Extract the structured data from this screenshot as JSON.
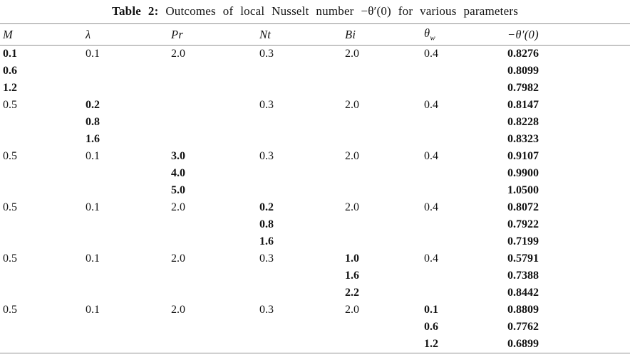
{
  "title": {
    "label": "Table 2:",
    "text": "Outcomes of local Nusselt number −θ′(0) for various parameters"
  },
  "table": {
    "headers": [
      {
        "name": "m",
        "text": "M"
      },
      {
        "name": "lambda",
        "text": "λ"
      },
      {
        "name": "pr",
        "text": "Pr"
      },
      {
        "name": "nt",
        "text": "Nt"
      },
      {
        "name": "bi",
        "text": "Bi"
      },
      {
        "name": "theta-w",
        "text": "θ",
        "sub": "w"
      },
      {
        "name": "nusselt",
        "text": "−θ′(0)"
      }
    ],
    "rows": [
      {
        "cells": [
          "0.1",
          "0.1",
          "2.0",
          "0.3",
          "2.0",
          "0.4",
          "0.8276"
        ],
        "bold": [
          true,
          false,
          false,
          false,
          false,
          false,
          true
        ]
      },
      {
        "cells": [
          "0.6",
          "",
          "",
          "",
          "",
          "",
          "0.8099"
        ],
        "bold": [
          true,
          false,
          false,
          false,
          false,
          false,
          true
        ]
      },
      {
        "cells": [
          "1.2",
          "",
          "",
          "",
          "",
          "",
          "0.7982"
        ],
        "bold": [
          true,
          false,
          false,
          false,
          false,
          false,
          true
        ]
      },
      {
        "cells": [
          "0.5",
          "0.2",
          "",
          "0.3",
          "2.0",
          "0.4",
          "0.8147"
        ],
        "bold": [
          false,
          true,
          false,
          false,
          false,
          false,
          true
        ]
      },
      {
        "cells": [
          "",
          "0.8",
          "",
          "",
          "",
          "",
          "0.8228"
        ],
        "bold": [
          false,
          true,
          false,
          false,
          false,
          false,
          true
        ]
      },
      {
        "cells": [
          "",
          "1.6",
          "",
          "",
          "",
          "",
          "0.8323"
        ],
        "bold": [
          false,
          true,
          false,
          false,
          false,
          false,
          true
        ]
      },
      {
        "cells": [
          "0.5",
          "0.1",
          "3.0",
          "0.3",
          "2.0",
          "0.4",
          "0.9107"
        ],
        "bold": [
          false,
          false,
          true,
          false,
          false,
          false,
          true
        ]
      },
      {
        "cells": [
          "",
          "",
          "4.0",
          "",
          "",
          "",
          "0.9900"
        ],
        "bold": [
          false,
          false,
          true,
          false,
          false,
          false,
          true
        ]
      },
      {
        "cells": [
          "",
          "",
          "5.0",
          "",
          "",
          "",
          "1.0500"
        ],
        "bold": [
          false,
          false,
          true,
          false,
          false,
          false,
          true
        ]
      },
      {
        "cells": [
          "0.5",
          "0.1",
          "2.0",
          "0.2",
          "2.0",
          "0.4",
          "0.8072"
        ],
        "bold": [
          false,
          false,
          false,
          true,
          false,
          false,
          true
        ]
      },
      {
        "cells": [
          "",
          "",
          "",
          "0.8",
          "",
          "",
          "0.7922"
        ],
        "bold": [
          false,
          false,
          false,
          true,
          false,
          false,
          true
        ]
      },
      {
        "cells": [
          "",
          "",
          "",
          "1.6",
          "",
          "",
          "0.7199"
        ],
        "bold": [
          false,
          false,
          false,
          true,
          false,
          false,
          true
        ]
      },
      {
        "cells": [
          "0.5",
          "0.1",
          "2.0",
          "0.3",
          "1.0",
          "0.4",
          "0.5791"
        ],
        "bold": [
          false,
          false,
          false,
          false,
          true,
          false,
          true
        ]
      },
      {
        "cells": [
          "",
          "",
          "",
          "",
          "1.6",
          "",
          "0.7388"
        ],
        "bold": [
          false,
          false,
          false,
          false,
          true,
          false,
          true
        ]
      },
      {
        "cells": [
          "",
          "",
          "",
          "",
          "2.2",
          "",
          "0.8442"
        ],
        "bold": [
          false,
          false,
          false,
          false,
          true,
          false,
          true
        ]
      },
      {
        "cells": [
          "0.5",
          "0.1",
          "2.0",
          "0.3",
          "2.0",
          "0.1",
          "0.8809"
        ],
        "bold": [
          false,
          false,
          false,
          false,
          false,
          true,
          true
        ]
      },
      {
        "cells": [
          "",
          "",
          "",
          "",
          "",
          "0.6",
          "0.7762"
        ],
        "bold": [
          false,
          false,
          false,
          false,
          false,
          true,
          true
        ]
      },
      {
        "cells": [
          "",
          "",
          "",
          "",
          "",
          "1.2",
          "0.6899"
        ],
        "bold": [
          false,
          false,
          false,
          false,
          false,
          true,
          true
        ]
      }
    ]
  }
}
